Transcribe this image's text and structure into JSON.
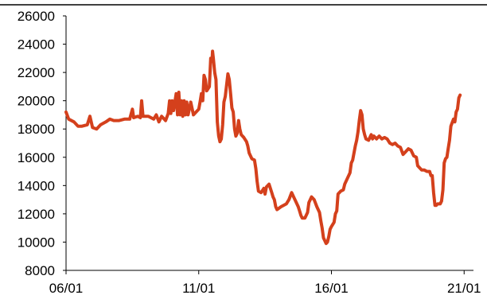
{
  "chart_data": {
    "type": "line",
    "title": "",
    "xlabel": "",
    "ylabel": "",
    "x_unit": "year",
    "xlim": [
      2006,
      2021.1
    ],
    "ylim": [
      8000,
      26000
    ],
    "x_ticks": [
      2006,
      2011,
      2016,
      2021
    ],
    "x_tick_labels": [
      "06/01",
      "11/01",
      "16/01",
      "21/01"
    ],
    "y_ticks": [
      8000,
      10000,
      12000,
      14000,
      16000,
      18000,
      20000,
      22000,
      24000,
      26000
    ],
    "y_tick_labels": [
      "8000",
      "10000",
      "12000",
      "14000",
      "16000",
      "18000",
      "20000",
      "22000",
      "24000",
      "26000"
    ],
    "grid": false,
    "legend": "none",
    "series": [
      {
        "color": "#d4401c",
        "points": [
          [
            2006.0,
            19200
          ],
          [
            2006.1,
            18700
          ],
          [
            2006.3,
            18500
          ],
          [
            2006.45,
            18200
          ],
          [
            2006.6,
            18200
          ],
          [
            2006.8,
            18300
          ],
          [
            2006.9,
            18900
          ],
          [
            2007.0,
            18100
          ],
          [
            2007.15,
            18000
          ],
          [
            2007.3,
            18300
          ],
          [
            2007.5,
            18500
          ],
          [
            2007.65,
            18700
          ],
          [
            2007.8,
            18600
          ],
          [
            2008.0,
            18600
          ],
          [
            2008.2,
            18700
          ],
          [
            2008.4,
            18700
          ],
          [
            2008.5,
            19400
          ],
          [
            2008.55,
            18800
          ],
          [
            2008.7,
            18900
          ],
          [
            2008.8,
            18800
          ],
          [
            2008.85,
            20000
          ],
          [
            2008.9,
            18900
          ],
          [
            2009.1,
            18900
          ],
          [
            2009.3,
            18700
          ],
          [
            2009.4,
            19000
          ],
          [
            2009.5,
            18500
          ],
          [
            2009.6,
            18900
          ],
          [
            2009.75,
            18600
          ],
          [
            2009.85,
            19100
          ],
          [
            2009.9,
            20000
          ],
          [
            2009.95,
            19100
          ],
          [
            2010.0,
            20000
          ],
          [
            2010.05,
            19300
          ],
          [
            2010.15,
            20500
          ],
          [
            2010.2,
            19000
          ],
          [
            2010.25,
            20600
          ],
          [
            2010.3,
            19000
          ],
          [
            2010.35,
            20000
          ],
          [
            2010.4,
            18900
          ],
          [
            2010.45,
            20000
          ],
          [
            2010.5,
            19000
          ],
          [
            2010.55,
            19900
          ],
          [
            2010.6,
            19000
          ],
          [
            2010.7,
            19900
          ],
          [
            2010.8,
            19000
          ],
          [
            2010.9,
            19200
          ],
          [
            2011.0,
            19400
          ],
          [
            2011.05,
            19900
          ],
          [
            2011.1,
            20500
          ],
          [
            2011.15,
            20000
          ],
          [
            2011.2,
            21800
          ],
          [
            2011.25,
            21500
          ],
          [
            2011.3,
            20700
          ],
          [
            2011.4,
            21000
          ],
          [
            2011.45,
            23000
          ],
          [
            2011.5,
            22800
          ],
          [
            2011.52,
            23500
          ],
          [
            2011.55,
            23000
          ],
          [
            2011.6,
            22000
          ],
          [
            2011.65,
            21500
          ],
          [
            2011.7,
            18500
          ],
          [
            2011.75,
            17500
          ],
          [
            2011.8,
            17100
          ],
          [
            2011.85,
            17300
          ],
          [
            2011.9,
            18300
          ],
          [
            2011.95,
            19900
          ],
          [
            2012.0,
            20300
          ],
          [
            2012.1,
            21900
          ],
          [
            2012.15,
            21500
          ],
          [
            2012.2,
            20500
          ],
          [
            2012.25,
            19500
          ],
          [
            2012.3,
            19200
          ],
          [
            2012.35,
            18000
          ],
          [
            2012.4,
            17500
          ],
          [
            2012.45,
            17700
          ],
          [
            2012.5,
            18600
          ],
          [
            2012.55,
            18000
          ],
          [
            2012.6,
            17600
          ],
          [
            2012.7,
            17400
          ],
          [
            2012.8,
            17100
          ],
          [
            2012.85,
            16800
          ],
          [
            2012.9,
            16300
          ],
          [
            2013.0,
            15900
          ],
          [
            2013.1,
            15800
          ],
          [
            2013.15,
            15200
          ],
          [
            2013.2,
            14300
          ],
          [
            2013.25,
            13600
          ],
          [
            2013.35,
            13500
          ],
          [
            2013.45,
            13800
          ],
          [
            2013.5,
            13400
          ],
          [
            2013.55,
            13900
          ],
          [
            2013.65,
            14100
          ],
          [
            2013.75,
            13500
          ],
          [
            2013.8,
            13200
          ],
          [
            2013.85,
            13000
          ],
          [
            2013.9,
            12500
          ],
          [
            2013.95,
            12300
          ],
          [
            2014.1,
            12500
          ],
          [
            2014.3,
            12700
          ],
          [
            2014.4,
            13000
          ],
          [
            2014.5,
            13500
          ],
          [
            2014.6,
            13100
          ],
          [
            2014.65,
            12900
          ],
          [
            2014.75,
            12500
          ],
          [
            2014.8,
            12200
          ],
          [
            2014.85,
            11900
          ],
          [
            2014.9,
            11700
          ],
          [
            2015.0,
            11700
          ],
          [
            2015.1,
            12100
          ],
          [
            2015.15,
            12800
          ],
          [
            2015.25,
            13200
          ],
          [
            2015.35,
            13000
          ],
          [
            2015.45,
            12500
          ],
          [
            2015.55,
            12100
          ],
          [
            2015.6,
            11500
          ],
          [
            2015.65,
            11000
          ],
          [
            2015.7,
            10300
          ],
          [
            2015.75,
            10100
          ],
          [
            2015.8,
            9900
          ],
          [
            2015.85,
            10000
          ],
          [
            2015.9,
            10400
          ],
          [
            2015.95,
            10900
          ],
          [
            2016.0,
            11100
          ],
          [
            2016.1,
            11400
          ],
          [
            2016.15,
            12000
          ],
          [
            2016.2,
            12200
          ],
          [
            2016.25,
            13400
          ],
          [
            2016.35,
            13600
          ],
          [
            2016.45,
            13700
          ],
          [
            2016.5,
            14100
          ],
          [
            2016.6,
            14500
          ],
          [
            2016.7,
            14900
          ],
          [
            2016.75,
            15600
          ],
          [
            2016.8,
            15800
          ],
          [
            2016.9,
            16800
          ],
          [
            2016.95,
            17200
          ],
          [
            2017.0,
            17800
          ],
          [
            2017.05,
            18600
          ],
          [
            2017.1,
            19300
          ],
          [
            2017.15,
            19000
          ],
          [
            2017.2,
            18000
          ],
          [
            2017.25,
            17600
          ],
          [
            2017.3,
            17300
          ],
          [
            2017.4,
            17200
          ],
          [
            2017.5,
            17600
          ],
          [
            2017.55,
            17300
          ],
          [
            2017.6,
            17500
          ],
          [
            2017.7,
            17300
          ],
          [
            2017.8,
            17500
          ],
          [
            2017.9,
            17300
          ],
          [
            2018.0,
            17400
          ],
          [
            2018.1,
            17300
          ],
          [
            2018.2,
            17000
          ],
          [
            2018.3,
            16900
          ],
          [
            2018.4,
            17000
          ],
          [
            2018.5,
            16800
          ],
          [
            2018.6,
            16700
          ],
          [
            2018.7,
            16200
          ],
          [
            2018.8,
            16400
          ],
          [
            2018.9,
            16600
          ],
          [
            2019.0,
            16500
          ],
          [
            2019.1,
            16100
          ],
          [
            2019.2,
            16000
          ],
          [
            2019.25,
            15400
          ],
          [
            2019.3,
            15300
          ],
          [
            2019.4,
            15100
          ],
          [
            2019.5,
            15100
          ],
          [
            2019.6,
            15000
          ],
          [
            2019.7,
            15000
          ],
          [
            2019.75,
            14700
          ],
          [
            2019.8,
            14700
          ],
          [
            2019.85,
            13500
          ],
          [
            2019.9,
            12600
          ],
          [
            2019.95,
            12600
          ],
          [
            2020.0,
            12700
          ],
          [
            2020.1,
            12700
          ],
          [
            2020.15,
            12900
          ],
          [
            2020.2,
            13700
          ],
          [
            2020.25,
            15600
          ],
          [
            2020.3,
            15900
          ],
          [
            2020.35,
            16000
          ],
          [
            2020.4,
            16600
          ],
          [
            2020.45,
            17200
          ],
          [
            2020.5,
            18200
          ],
          [
            2020.6,
            18700
          ],
          [
            2020.65,
            18500
          ],
          [
            2020.7,
            19200
          ],
          [
            2020.75,
            19400
          ],
          [
            2020.8,
            20200
          ],
          [
            2020.85,
            20400
          ]
        ]
      }
    ]
  }
}
